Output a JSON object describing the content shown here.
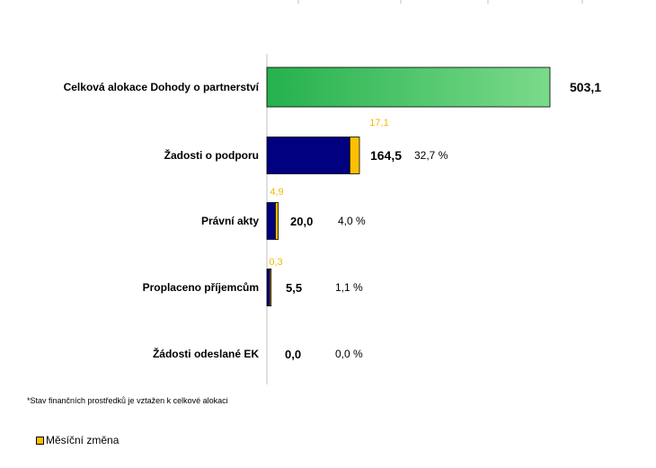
{
  "chart_data": {
    "type": "bar",
    "orientation": "horizontal",
    "stacked": true,
    "categories": [
      "Celková alokace Dohody o partnerství",
      "Žadosti o podporu",
      "Právní akty",
      "Proplaceno příjemcům",
      "Žádosti odeslané EK"
    ],
    "totals": [
      503.1,
      164.5,
      20.0,
      5.5,
      0.0
    ],
    "total_labels": [
      "503,1",
      "164,5",
      "20,0",
      "5,5",
      "0,0"
    ],
    "monthly_change": [
      null,
      17.1,
      4.9,
      0.3,
      null
    ],
    "monthly_change_labels": [
      "",
      "17,1",
      "4,9",
      "0,3",
      ""
    ],
    "percent_labels": [
      "",
      "32,7 %",
      "4,0 %",
      "1,1 %",
      "0,0 %"
    ],
    "series": [
      {
        "name": "",
        "values": [
          503.1,
          147.4,
          15.1,
          5.2,
          0.0
        ]
      },
      {
        "name": "Měsíční změna",
        "values": [
          0,
          17.1,
          4.9,
          0.3,
          0
        ]
      }
    ],
    "xlim": [
      0,
      503.1
    ],
    "grid": false,
    "legend_position": "bottom-left",
    "colors": {
      "allocation_start": "#25B14D",
      "allocation_end": "#7BDA8B",
      "base": "#000080",
      "change": "#FFC000",
      "change_label": "#F5B800"
    }
  },
  "footnote": "*Stav finančních prostředků je vztažen k celkové alokaci",
  "legend": {
    "label": "Měsíční změna",
    "color": "#FFC000"
  }
}
